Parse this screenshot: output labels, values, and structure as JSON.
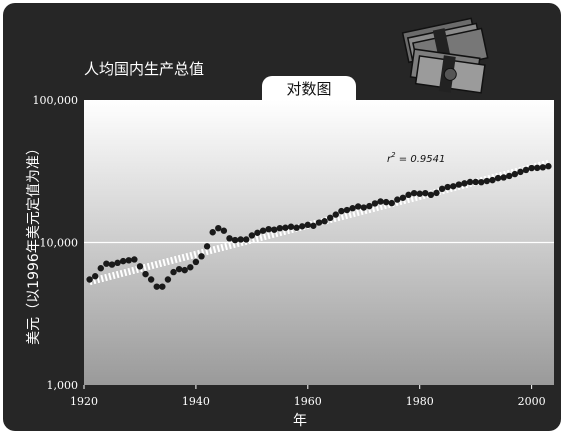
{
  "page": {
    "title": "人均国内生产总值",
    "tab_label": "对数图",
    "decoration": "money-stack-icon"
  },
  "colors": {
    "frame": "#262626",
    "plot_top": "#ffffff",
    "plot_bottom": "#9a9a9a",
    "dot": "#1a1a1a",
    "trend": "#ffffff",
    "gridline": "#ffffff"
  },
  "chart_data": {
    "type": "scatter",
    "scale_y": "log",
    "title": "人均国内生产总值",
    "subtitle": "对数图",
    "xlabel": "年",
    "ylabel": "美元（以1996年美元定值为准）",
    "xlim": [
      1920,
      2004
    ],
    "ylim": [
      1000,
      100000
    ],
    "x_ticks": [
      1920,
      1940,
      1960,
      1980,
      2000
    ],
    "x_tick_labels": [
      "1920",
      "1940",
      "1960",
      "1980",
      "2000"
    ],
    "y_ticks": [
      1000,
      10000,
      100000
    ],
    "y_tick_labels": [
      "1,000",
      "10,000",
      "100,000"
    ],
    "grid": "y-major",
    "annotation": {
      "base": "r",
      "exp": "2",
      "value": " = 0.9541"
    },
    "trend": {
      "x": [
        1921,
        2003
      ],
      "y": [
        5300,
        36000
      ]
    },
    "x": [
      1921,
      1922,
      1923,
      1924,
      1925,
      1926,
      1927,
      1928,
      1929,
      1930,
      1931,
      1932,
      1933,
      1934,
      1935,
      1936,
      1937,
      1938,
      1939,
      1940,
      1941,
      1942,
      1943,
      1944,
      1945,
      1946,
      1947,
      1948,
      1949,
      1950,
      1951,
      1952,
      1953,
      1954,
      1955,
      1956,
      1957,
      1958,
      1959,
      1960,
      1961,
      1962,
      1963,
      1964,
      1965,
      1966,
      1967,
      1968,
      1969,
      1970,
      1971,
      1972,
      1973,
      1974,
      1975,
      1976,
      1977,
      1978,
      1979,
      1980,
      1981,
      1982,
      1983,
      1984,
      1985,
      1986,
      1987,
      1988,
      1989,
      1990,
      1991,
      1992,
      1993,
      1994,
      1995,
      1996,
      1997,
      1998,
      1999,
      2000,
      2001,
      2002,
      2003
    ],
    "y": [
      5500,
      5800,
      6600,
      7100,
      7000,
      7200,
      7400,
      7500,
      7600,
      6800,
      6000,
      5500,
      4900,
      4900,
      5500,
      6200,
      6500,
      6400,
      6700,
      7300,
      8000,
      9400,
      11800,
      12600,
      12100,
      10700,
      10400,
      10500,
      10500,
      11200,
      11700,
      12100,
      12400,
      12300,
      12600,
      12700,
      12900,
      12700,
      13000,
      13300,
      13100,
      13800,
      14100,
      14900,
      15700,
      16600,
      16900,
      17400,
      17900,
      17600,
      18000,
      18800,
      19400,
      19200,
      18900,
      20000,
      20600,
      21600,
      22200,
      22000,
      22200,
      21600,
      22300,
      23800,
      24500,
      24800,
      25500,
      26000,
      26600,
      26600,
      26500,
      27000,
      27400,
      28300,
      28600,
      29300,
      30200,
      31300,
      32300,
      33300,
      33400,
      33700,
      34300
    ]
  }
}
